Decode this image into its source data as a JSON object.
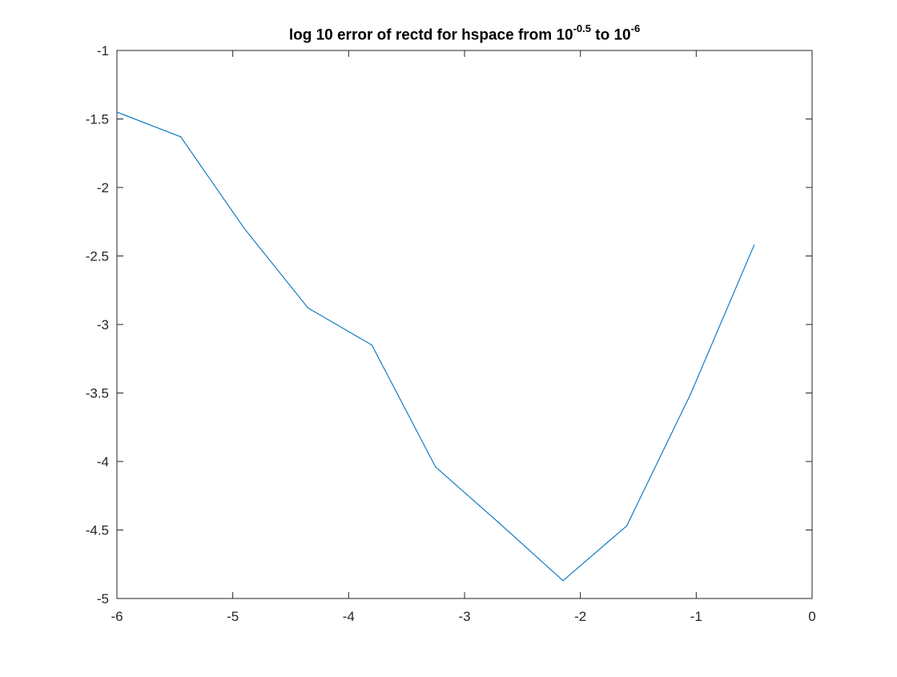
{
  "chart_data": {
    "type": "line",
    "title": {
      "prefix": "log 10 error of rectd for hspace from 10",
      "sup1": "-0.5",
      "middle": " to 10",
      "sup2": "-6"
    },
    "xlabel": "",
    "ylabel": "",
    "xlim": [
      -6,
      0
    ],
    "ylim": [
      -5,
      -1
    ],
    "xticks": [
      -6,
      -5,
      -4,
      -3,
      -2,
      -1,
      0
    ],
    "yticks": [
      -1,
      -1.5,
      -2,
      -2.5,
      -3,
      -3.5,
      -4,
      -4.5,
      -5
    ],
    "xtick_labels": [
      "-6",
      "-5",
      "-4",
      "-3",
      "-2",
      "-1",
      "0"
    ],
    "ytick_labels": [
      "-1",
      "-1.5",
      "-2",
      "-2.5",
      "-3",
      "-3.5",
      "-4",
      "-4.5",
      "-5"
    ],
    "grid": false,
    "legend": "none",
    "series": [
      {
        "color": "#0072BD",
        "x": [
          -6.0,
          -5.45,
          -4.9,
          -4.35,
          -3.8,
          -3.25,
          -2.7,
          -2.15,
          -1.6,
          -1.05,
          -0.5
        ],
        "y": [
          -1.45,
          -1.63,
          -2.3,
          -2.88,
          -3.15,
          -4.04,
          -4.45,
          -4.87,
          -4.47,
          -3.51,
          -2.42
        ]
      }
    ]
  }
}
